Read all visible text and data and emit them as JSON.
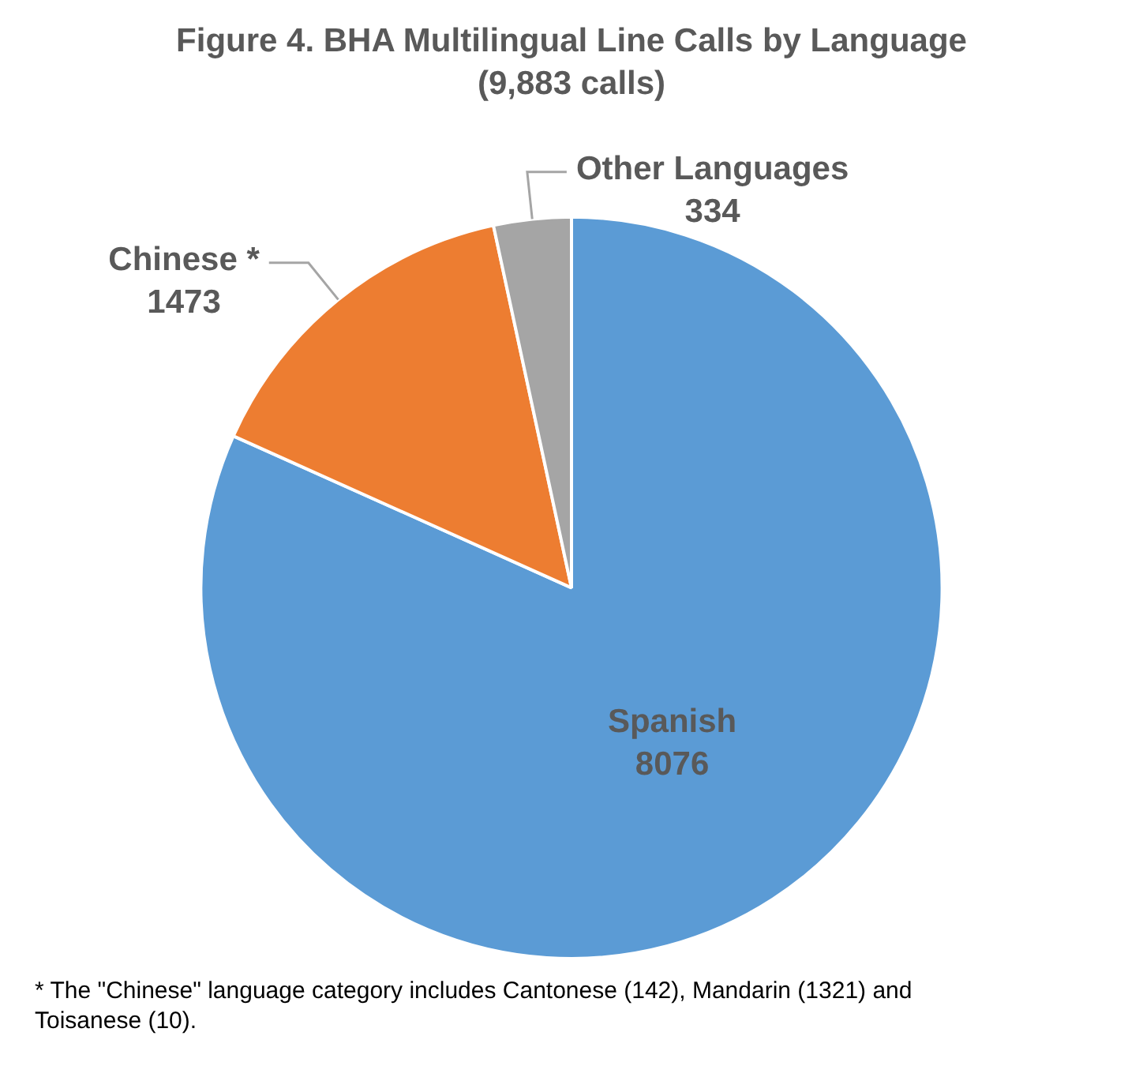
{
  "chart_data": {
    "type": "pie",
    "title": "Figure 4. BHA Multilingual Line Calls by Language",
    "subtitle": "(9,883 calls)",
    "categories": [
      "Spanish",
      "Chinese *",
      "Other Languages"
    ],
    "values": [
      8076,
      1473,
      334
    ],
    "colors": [
      "#5b9bd5",
      "#ed7d31",
      "#a5a5a5"
    ],
    "data_labels": true,
    "annotations": [
      "* The \"Chinese\" language category includes Cantonese (142), Mandarin (1321) and Toisanese (10)."
    ]
  }
}
